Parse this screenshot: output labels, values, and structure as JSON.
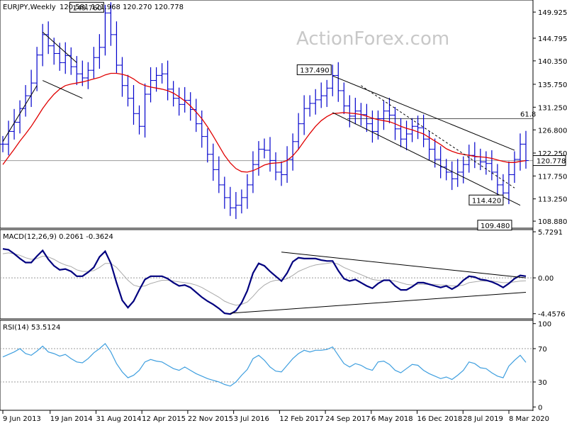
{
  "header": {
    "symbol": "EURJPY,Weekly",
    "ohlc": "120.581 121.968 120.270 120.778"
  },
  "watermark": "ActionForex.com",
  "colors": {
    "price": "#0000cc",
    "ma": "#e00000",
    "macd": "#00007f",
    "signal": "#a9a9a9",
    "rsi": "#3f9fdf",
    "grid": "#9b9b9b",
    "label_bg": "#ffffff"
  },
  "chart_data": [
    {
      "type": "line",
      "panel": "price",
      "series": [
        {
          "name": "",
          "values": [
            124.0,
            126.5,
            128.3,
            131.0,
            133.5,
            136.0,
            141.5,
            145.5,
            143.3,
            141.8,
            140.0,
            141.4,
            139.2,
            137.8,
            137.0,
            138.5,
            141.0,
            143.0,
            149.76,
            145.5,
            139.5,
            135.5,
            133.0,
            130.0,
            127.5,
            133.8,
            136.5,
            137.5,
            137.8,
            134.8,
            133.0,
            131.8,
            132.6,
            130.8,
            128.0,
            125.5,
            122.0,
            119.0,
            116.0,
            113.5,
            111.5,
            112.0,
            113.5,
            116.0,
            120.0,
            123.0,
            122.8,
            120.8,
            118.5,
            118.0,
            121.0,
            124.5,
            128.0,
            131.0,
            132.0,
            132.7,
            133.5,
            135.0,
            137.49,
            134.5,
            131.5,
            129.5,
            130.5,
            129.8,
            128.0,
            126.5,
            129.0,
            130.5,
            129.7,
            127.0,
            125.0,
            126.0,
            127.5,
            127.2,
            125.0,
            123.0,
            121.0,
            119.5,
            118.5,
            117.2,
            118.5,
            120.0,
            121.8,
            121.5,
            120.5,
            120.2,
            118.5,
            116.0,
            114.42,
            118.0,
            121.0,
            124.0,
            120.778
          ]
        }
      ],
      "ma_values": [
        120.0,
        121.5,
        123.0,
        124.6,
        126.0,
        127.5,
        129.2,
        131.0,
        132.5,
        133.8,
        134.8,
        135.5,
        135.8,
        136.0,
        136.2,
        136.5,
        136.8,
        137.1,
        137.6,
        137.9,
        137.9,
        137.7,
        137.4,
        136.8,
        136.0,
        135.5,
        135.2,
        135.0,
        134.8,
        134.5,
        134.0,
        133.3,
        132.5,
        131.5,
        130.3,
        129.0,
        127.4,
        125.6,
        123.7,
        121.8,
        120.3,
        119.2,
        118.6,
        118.5,
        118.8,
        119.3,
        119.9,
        120.2,
        120.3,
        120.4,
        120.8,
        121.7,
        123.0,
        124.6,
        126.1,
        127.5,
        128.6,
        129.4,
        130.0,
        130.1,
        130.2,
        130.1,
        130.0,
        129.8,
        129.5,
        129.1,
        128.8,
        128.6,
        128.4,
        128.0,
        127.5,
        127.1,
        126.8,
        126.4,
        126.0,
        125.3,
        124.6,
        123.9,
        123.1,
        122.6,
        122.2,
        122.0,
        121.8,
        121.6,
        121.5,
        121.4,
        121.2,
        120.9,
        120.6,
        120.4,
        120.4,
        120.6,
        120.778
      ],
      "y_ticks": [
        149.925,
        144.795,
        140.35,
        135.75,
        131.25,
        126.8,
        122.25,
        117.75,
        113.25,
        108.88
      ],
      "ylim": [
        107.5,
        152.3
      ],
      "reference_line": 120.778,
      "fib_level": 129.0,
      "fib_label": "61.8",
      "annotations": [
        {
          "label": "149.760",
          "value": 149.76
        },
        {
          "label": "137.490",
          "value": 137.49
        },
        {
          "label": "114.420",
          "value": 114.42
        },
        {
          "label": "109.480",
          "value": 109.48
        }
      ],
      "current_price_label": "120.778"
    },
    {
      "type": "line",
      "panel": "macd",
      "title": "MACD(12,26,9) 0.2061 -0.3624",
      "series": [
        {
          "name": "",
          "values": [
            3.6,
            3.5,
            3.0,
            2.4,
            1.9,
            1.9,
            2.7,
            3.4,
            2.3,
            1.5,
            1.0,
            1.1,
            0.8,
            0.2,
            0.2,
            0.7,
            1.3,
            2.6,
            3.3,
            1.8,
            -0.6,
            -2.8,
            -3.7,
            -2.9,
            -1.5,
            -0.2,
            0.2,
            0.2,
            0.2,
            -0.1,
            -0.6,
            -1.0,
            -0.9,
            -1.2,
            -1.8,
            -2.4,
            -2.9,
            -3.3,
            -3.8,
            -4.4,
            -4.5,
            -4.1,
            -3.1,
            -1.6,
            0.6,
            1.8,
            1.5,
            0.8,
            0.2,
            -0.4,
            0.6,
            2.0,
            2.5,
            2.4,
            2.4,
            2.4,
            2.2,
            2.1,
            2.1,
            0.9,
            -0.1,
            -0.4,
            -0.2,
            -0.6,
            -1.0,
            -1.3,
            -0.7,
            -0.3,
            -0.3,
            -1.0,
            -1.5,
            -1.5,
            -1.1,
            -0.6,
            -0.6,
            -0.8,
            -1.0,
            -1.2,
            -1.0,
            -1.4,
            -1.0,
            -0.3,
            0.2,
            0.1,
            -0.2,
            -0.3,
            -0.5,
            -0.8,
            -1.2,
            -0.7,
            -0.1,
            0.3,
            0.2061
          ]
        }
      ],
      "signal_values": [
        3.0,
        3.1,
        3.0,
        2.8,
        2.5,
        2.3,
        2.4,
        2.7,
        2.6,
        2.3,
        1.9,
        1.6,
        1.4,
        1.0,
        0.8,
        0.8,
        0.9,
        1.3,
        1.8,
        1.8,
        1.3,
        0.5,
        -0.3,
        -0.9,
        -1.1,
        -1.0,
        -0.7,
        -0.5,
        -0.3,
        -0.3,
        -0.4,
        -0.5,
        -0.6,
        -0.7,
        -0.9,
        -1.2,
        -1.6,
        -2.0,
        -2.4,
        -2.9,
        -3.2,
        -3.4,
        -3.3,
        -3.0,
        -2.3,
        -1.5,
        -0.9,
        -0.5,
        -0.3,
        -0.3,
        -0.1,
        0.3,
        0.8,
        1.1,
        1.4,
        1.6,
        1.7,
        1.8,
        1.9,
        1.7,
        1.3,
        1.0,
        0.7,
        0.4,
        0.1,
        -0.2,
        -0.3,
        -0.3,
        -0.3,
        -0.4,
        -0.6,
        -0.8,
        -0.9,
        -0.8,
        -0.8,
        -0.8,
        -0.8,
        -0.9,
        -0.9,
        -1.0,
        -1.0,
        -0.9,
        -0.6,
        -0.5,
        -0.4,
        -0.4,
        -0.4,
        -0.5,
        -0.6,
        -0.6,
        -0.5,
        -0.4,
        -0.3624
      ],
      "y_ticks": [
        5.7291,
        0.0,
        -4.4576
      ],
      "ylim": [
        -5.1,
        6.0
      ]
    },
    {
      "type": "line",
      "panel": "rsi",
      "title": "RSI(14) 53.5124",
      "series": [
        {
          "name": "",
          "values": [
            60,
            63,
            66,
            70,
            64,
            62,
            67,
            73,
            66,
            64,
            61,
            63,
            58,
            54,
            53,
            58,
            65,
            70,
            76,
            66,
            52,
            42,
            35,
            38,
            44,
            54,
            57,
            55,
            54,
            50,
            46,
            44,
            48,
            44,
            40,
            37,
            34,
            32,
            30,
            27,
            25,
            30,
            38,
            45,
            58,
            62,
            56,
            48,
            43,
            42,
            50,
            58,
            64,
            68,
            66,
            68,
            68,
            69,
            72,
            62,
            52,
            48,
            52,
            50,
            46,
            44,
            54,
            55,
            51,
            44,
            41,
            46,
            51,
            50,
            44,
            40,
            37,
            34,
            36,
            33,
            38,
            44,
            54,
            52,
            47,
            46,
            41,
            37,
            35,
            49,
            56,
            62,
            53.5124
          ]
        }
      ],
      "y_ticks": [
        100,
        70,
        30,
        0
      ],
      "ylim": [
        -4,
        104
      ]
    }
  ],
  "x_axis": {
    "labels": [
      "9 Jun 2013",
      "19 Jan 2014",
      "31 Aug 2014",
      "12 Apr 2015",
      "22 Nov 2015",
      "3 Jul 2016",
      "12 Feb 2017",
      "24 Sep 2017",
      "6 May 2018",
      "16 Dec 2018",
      "28 Jul 2019",
      "8 Mar 2020"
    ]
  }
}
